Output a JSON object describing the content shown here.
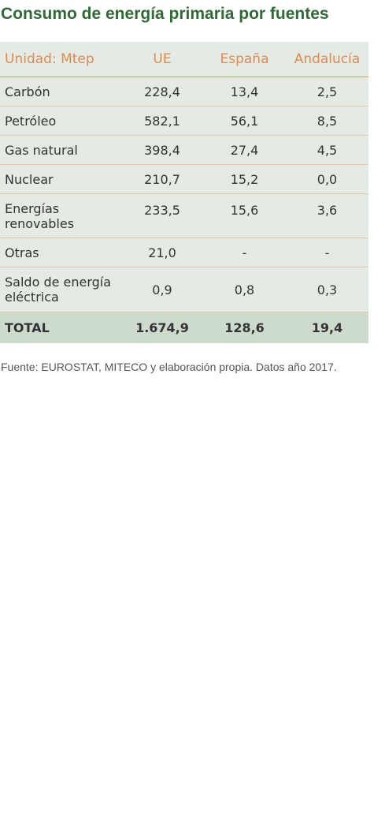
{
  "title": "Consumo de energía primaria por fuentes",
  "table": {
    "headers": [
      "Unidad: Mtep",
      "UE",
      "España",
      "Andalucía"
    ],
    "rows": [
      {
        "label": "Carbón",
        "ue": "228,4",
        "espana": "13,4",
        "andalucia": "2,5"
      },
      {
        "label": "Petróleo",
        "ue": "582,1",
        "espana": "56,1",
        "andalucia": "8,5"
      },
      {
        "label": "Gas natural",
        "ue": "398,4",
        "espana": "27,4",
        "andalucia": "4,5"
      },
      {
        "label": "Nuclear",
        "ue": "210,7",
        "espana": "15,2",
        "andalucia": "0,0"
      },
      {
        "label": "Energías renovables",
        "ue": "233,5",
        "espana": "15,6",
        "andalucia": "3,6"
      },
      {
        "label": "Otras",
        "ue": "21,0",
        "espana": "-",
        "andalucia": "-"
      },
      {
        "label": "Saldo de energía eléctrica",
        "ue": "0,9",
        "espana": "0,8",
        "andalucia": "0,3"
      }
    ],
    "total": {
      "label": "TOTAL",
      "ue": "1.674,9",
      "espana": "128,6",
      "andalucia": "19,4"
    }
  },
  "source": "Fuente: EUROSTAT, MITECO y elaboración propia. Datos año 2017.",
  "colors": {
    "title": "#2f6b34",
    "header_text": "#e08a4e",
    "table_bg": "#e4ebe4",
    "total_bg": "#cddbcd"
  }
}
